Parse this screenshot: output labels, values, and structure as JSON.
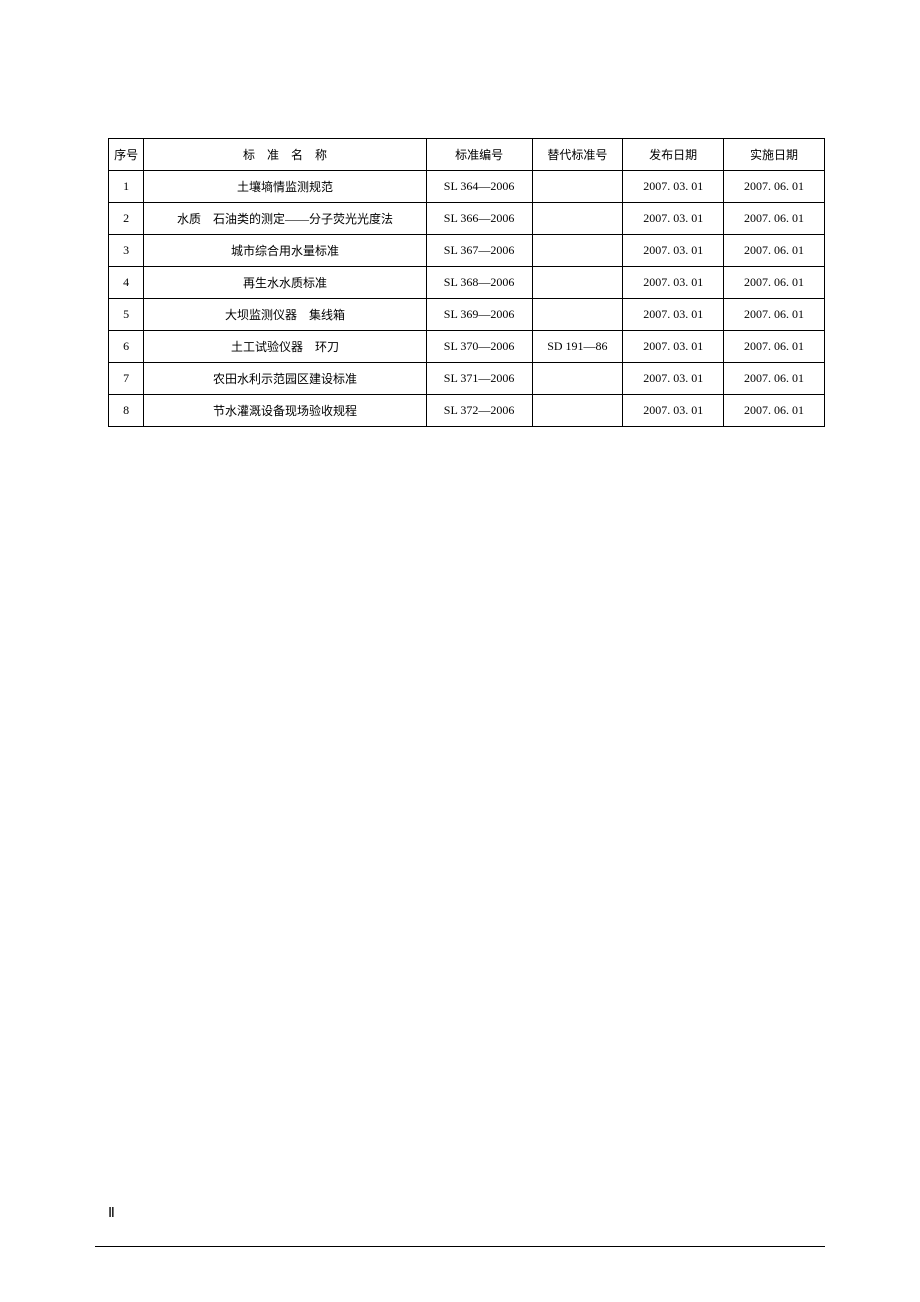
{
  "table": {
    "headers": {
      "seq": "序号",
      "name": "标准名称",
      "code": "标准编号",
      "replace": "替代标准号",
      "pubDate": "发布日期",
      "implDate": "实施日期"
    },
    "rows": [
      {
        "seq": "1",
        "name": "土壤墒情监测规范",
        "code": "SL 364—2006",
        "replace": "",
        "pubDate": "2007. 03. 01",
        "implDate": "2007. 06. 01"
      },
      {
        "seq": "2",
        "name": "水质　石油类的测定——分子荧光光度法",
        "code": "SL 366—2006",
        "replace": "",
        "pubDate": "2007. 03. 01",
        "implDate": "2007. 06. 01"
      },
      {
        "seq": "3",
        "name": "城市综合用水量标准",
        "code": "SL 367—2006",
        "replace": "",
        "pubDate": "2007. 03. 01",
        "implDate": "2007. 06. 01"
      },
      {
        "seq": "4",
        "name": "再生水水质标准",
        "code": "SL 368—2006",
        "replace": "",
        "pubDate": "2007. 03. 01",
        "implDate": "2007. 06. 01"
      },
      {
        "seq": "5",
        "name": "大坝监测仪器　集线箱",
        "code": "SL 369—2006",
        "replace": "",
        "pubDate": "2007. 03. 01",
        "implDate": "2007. 06. 01"
      },
      {
        "seq": "6",
        "name": "土工试验仪器　环刀",
        "code": "SL 370—2006",
        "replace": "SD 191—86",
        "pubDate": "2007. 03. 01",
        "implDate": "2007. 06. 01"
      },
      {
        "seq": "7",
        "name": "农田水利示范园区建设标准",
        "code": "SL 371—2006",
        "replace": "",
        "pubDate": "2007. 03. 01",
        "implDate": "2007. 06. 01"
      },
      {
        "seq": "8",
        "name": "节水灌溉设备现场验收规程",
        "code": "SL 372—2006",
        "replace": "",
        "pubDate": "2007. 03. 01",
        "implDate": "2007. 06. 01"
      }
    ]
  },
  "pageNumber": "Ⅱ",
  "styles": {
    "background_color": "#ffffff",
    "border_color": "#000000",
    "text_color": "#000000",
    "font_size_table": 12,
    "font_size_pagenum": 14
  }
}
